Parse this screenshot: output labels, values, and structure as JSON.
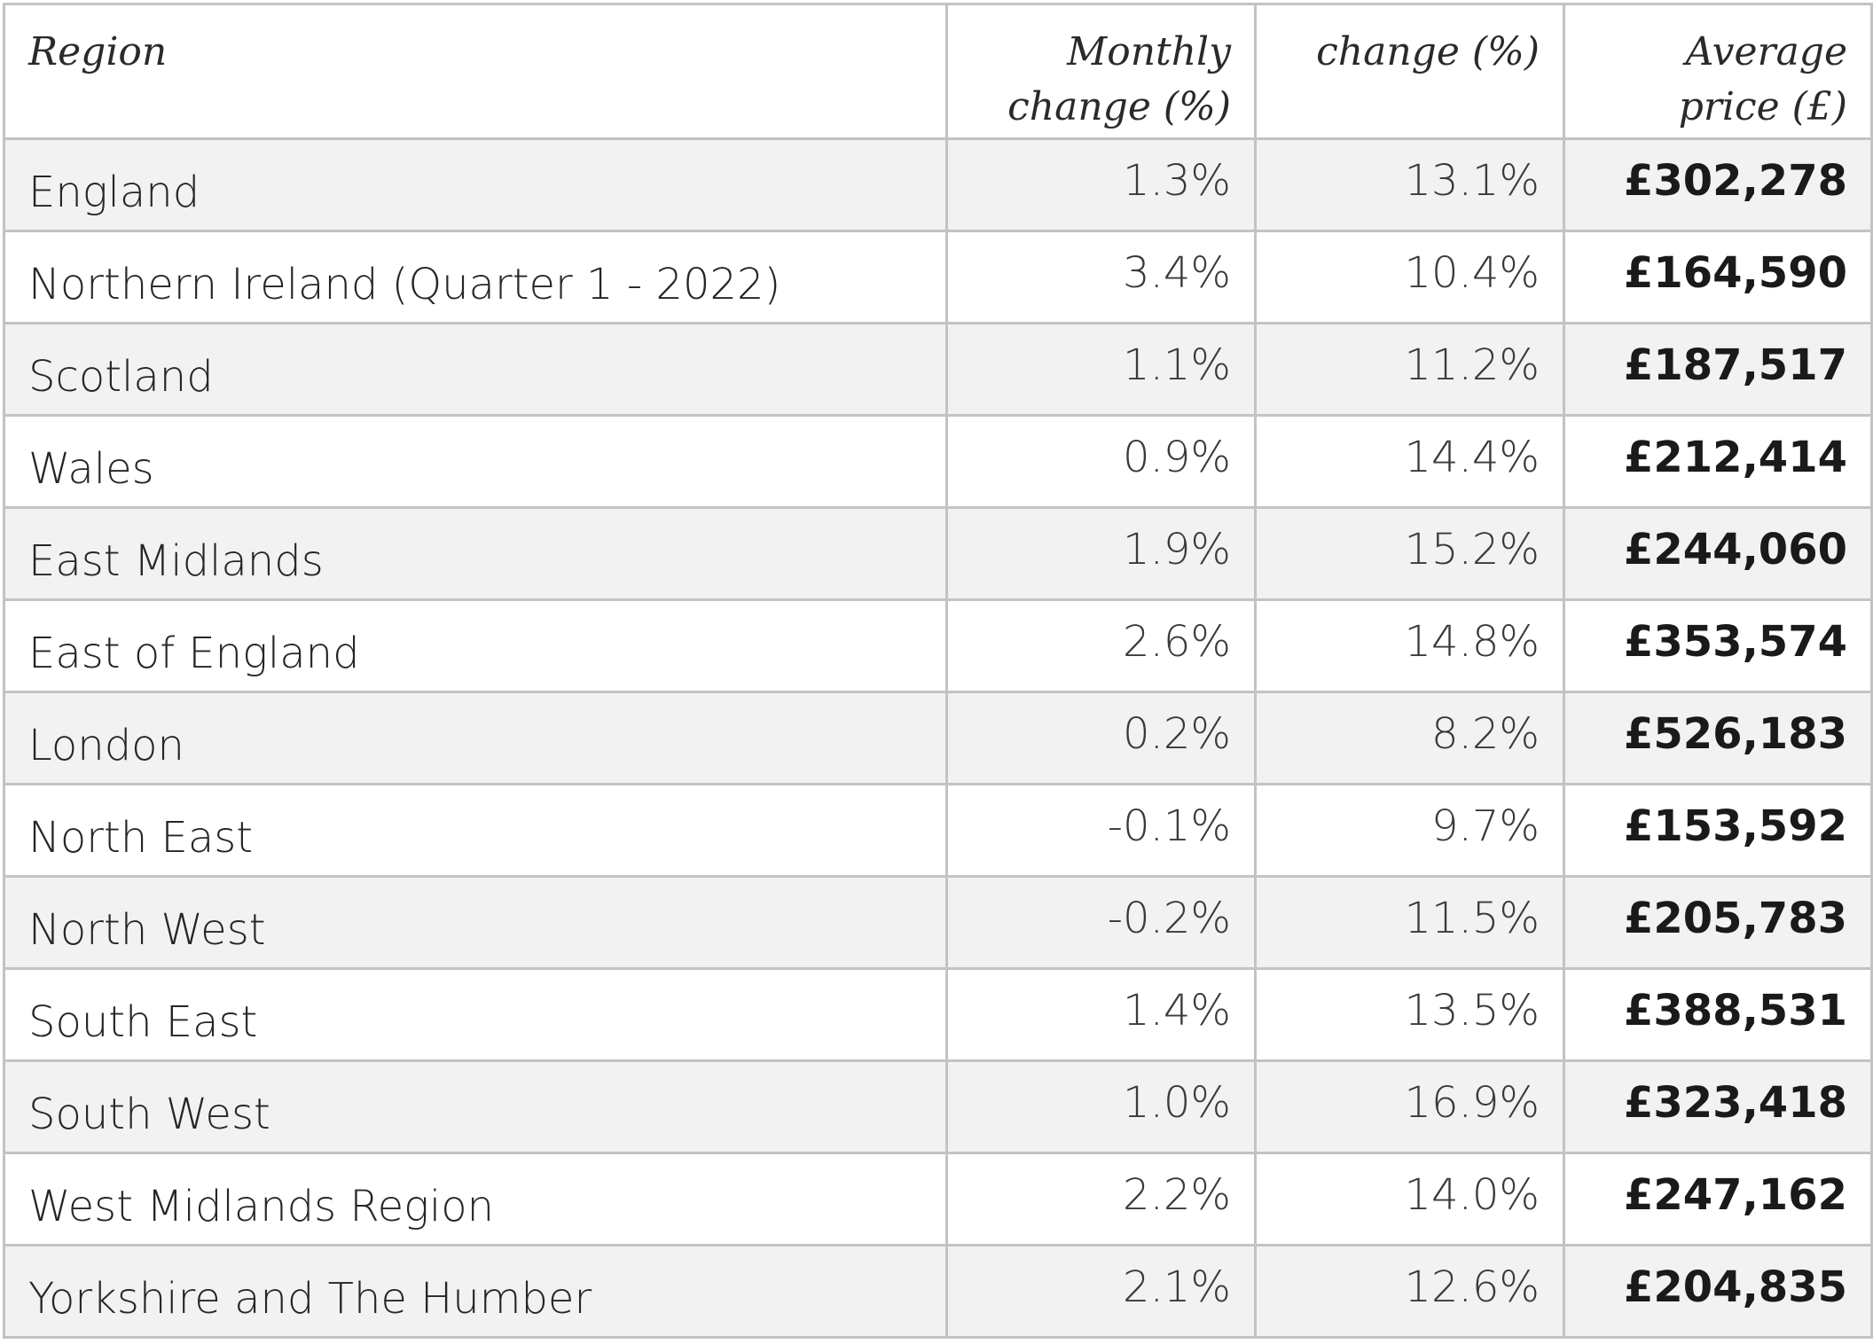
{
  "table": {
    "headers": {
      "region": "Region",
      "monthly_line1": "Monthly",
      "monthly_line2": "change (%)",
      "annual": "change (%)",
      "price_line1": "Average",
      "price_line2": "price (£)"
    },
    "rows": [
      {
        "region": "England",
        "monthly": "1.3%",
        "annual": "13.1%",
        "price": "£302,278"
      },
      {
        "region": "Northern Ireland (Quarter 1 - 2022)",
        "monthly": "3.4%",
        "annual": "10.4%",
        "price": "£164,590"
      },
      {
        "region": "Scotland",
        "monthly": "1.1%",
        "annual": "11.2%",
        "price": "£187,517"
      },
      {
        "region": "Wales",
        "monthly": "0.9%",
        "annual": "14.4%",
        "price": "£212,414"
      },
      {
        "region": "East Midlands",
        "monthly": "1.9%",
        "annual": "15.2%",
        "price": "£244,060"
      },
      {
        "region": "East of England",
        "monthly": "2.6%",
        "annual": "14.8%",
        "price": "£353,574"
      },
      {
        "region": "London",
        "monthly": "0.2%",
        "annual": "8.2%",
        "price": "£526,183"
      },
      {
        "region": "North East",
        "monthly": "-0.1%",
        "annual": "9.7%",
        "price": "£153,592"
      },
      {
        "region": "North West",
        "monthly": "-0.2%",
        "annual": "11.5%",
        "price": "£205,783"
      },
      {
        "region": "South East",
        "monthly": "1.4%",
        "annual": "13.5%",
        "price": "£388,531"
      },
      {
        "region": "South West",
        "monthly": "1.0%",
        "annual": "16.9%",
        "price": "£323,418"
      },
      {
        "region": "West Midlands Region",
        "monthly": "2.2%",
        "annual": "14.0%",
        "price": "£247,162"
      },
      {
        "region": "Yorkshire and The Humber",
        "monthly": "2.1%",
        "annual": "12.6%",
        "price": "£204,835"
      }
    ]
  },
  "colors": {
    "border": "#c3c3c3",
    "row_shaded": "#f2f2f2",
    "row_plain": "#ffffff",
    "text": "#1f1f1f"
  }
}
